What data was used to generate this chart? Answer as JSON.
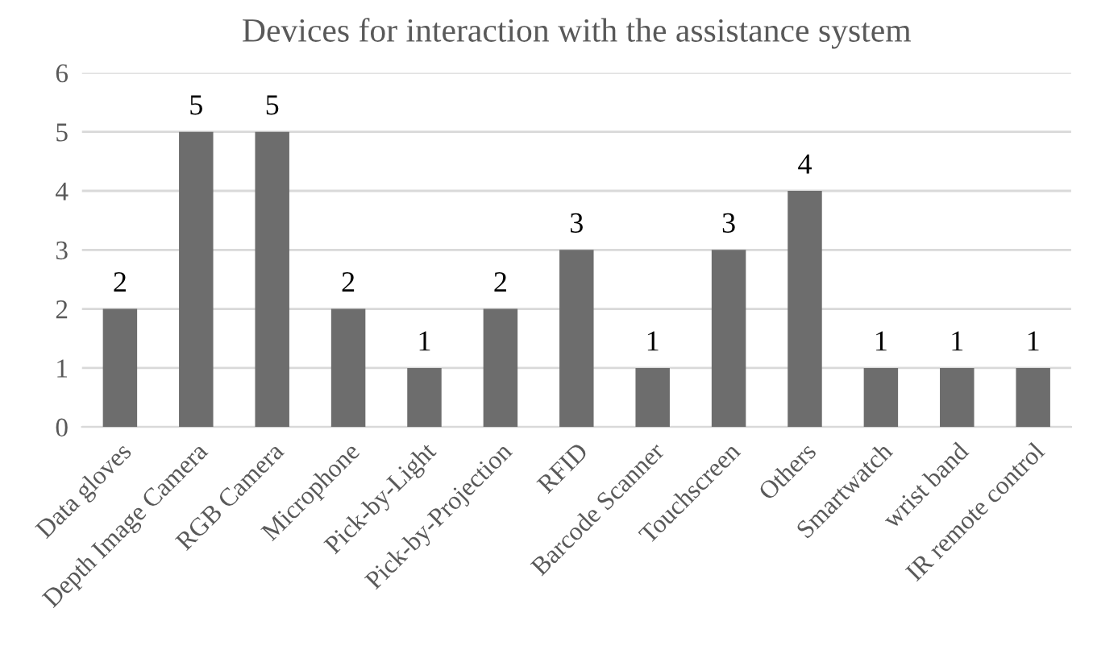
{
  "chart_data": {
    "type": "bar",
    "title": "Devices for interaction with the assistance system",
    "categories": [
      "Data gloves",
      "Depth Image Camera",
      "RGB Camera",
      "Microphone",
      "Pick-by-Light",
      "Pick-by-Projection",
      "RFID",
      "Barcode Scanner",
      "Touchscreen",
      "Others",
      "Smartwatch",
      "wrist band",
      "IR remote control"
    ],
    "values": [
      2,
      5,
      5,
      2,
      1,
      2,
      3,
      1,
      3,
      4,
      1,
      1,
      1
    ],
    "color": "#6d6d6d",
    "ylim": [
      0,
      6
    ],
    "yticks": [
      0,
      1,
      2,
      3,
      4,
      5,
      6
    ],
    "grid": "y",
    "data_labels": true
  }
}
